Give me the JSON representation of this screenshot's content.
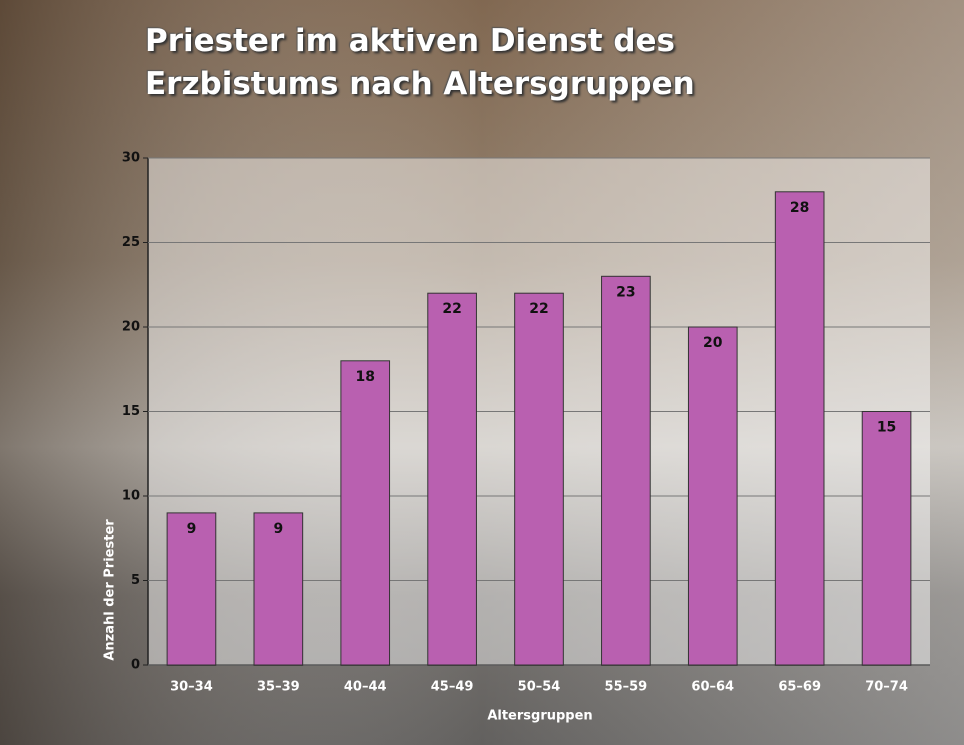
{
  "chart_data": {
    "type": "bar",
    "title": "Priester im aktiven Dienst des Erzbistums nach Altersgruppen",
    "x_label": "Altersgruppen",
    "y_label": "Anzahl der Priester",
    "categories": [
      "30–34",
      "35–39",
      "40–44",
      "45–49",
      "50–54",
      "55–59",
      "60–64",
      "65–69",
      "70–74"
    ],
    "values": [
      9,
      9,
      18,
      22,
      22,
      23,
      20,
      28,
      15
    ],
    "color": "#b960b0",
    "ylim": [
      0,
      30
    ],
    "yticks": [
      0,
      5,
      10,
      15,
      20,
      25,
      30
    ],
    "grid": true
  }
}
